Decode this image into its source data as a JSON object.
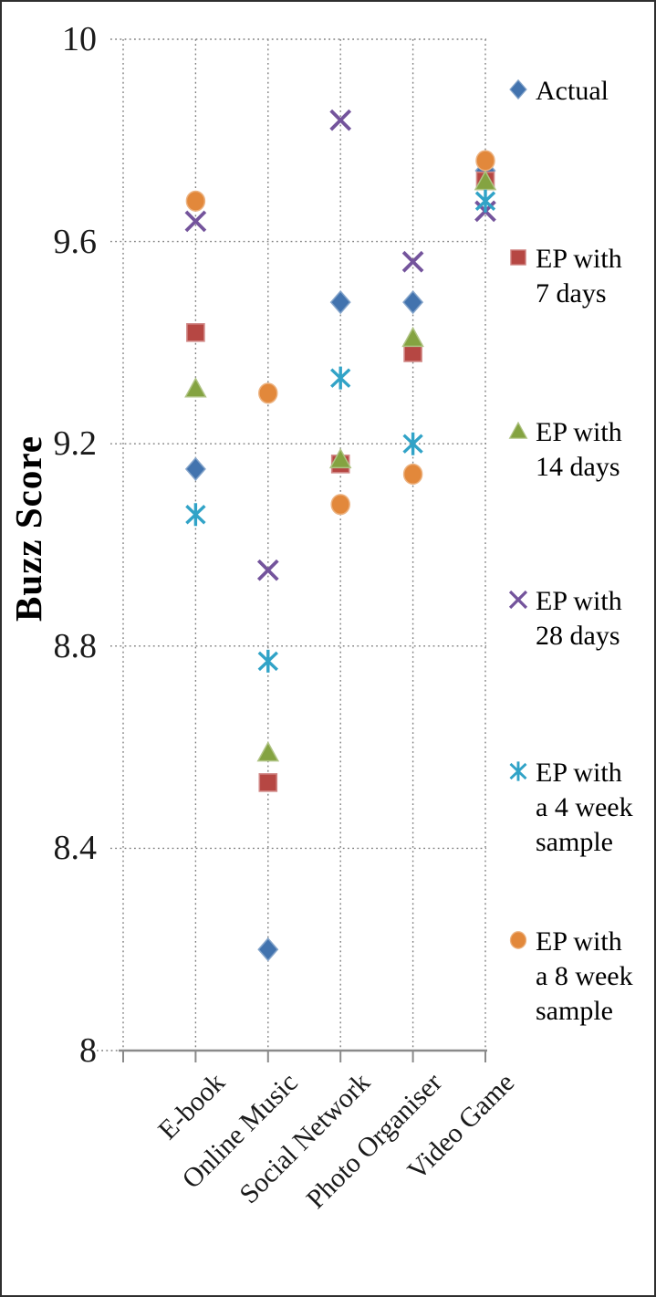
{
  "chart_data": {
    "type": "scatter",
    "title": "",
    "ylabel": "Buzz Score",
    "xlabel": "",
    "ylim": [
      8,
      10
    ],
    "y_ticks": [
      "10",
      "9.6",
      "9.2",
      "8.8",
      "8.4",
      "8"
    ],
    "grid": "dotted",
    "legend_position": "right",
    "categories": [
      "E-book",
      "Online Music",
      "Social Network",
      "Photo Organiser",
      "Video Game"
    ],
    "series": [
      {
        "name": "Actual",
        "label_lines": [
          "Actual"
        ],
        "marker": "diamond-icon",
        "color": "#4273AE",
        "values": [
          9.15,
          8.2,
          9.48,
          9.48,
          9.74
        ]
      },
      {
        "name": "EP with 7 days",
        "label_lines": [
          "EP with",
          "7 days"
        ],
        "marker": "square-icon",
        "color": "#B64743",
        "values": [
          9.42,
          8.53,
          9.16,
          9.38,
          9.72
        ]
      },
      {
        "name": "EP with 14 days",
        "label_lines": [
          "EP with",
          "14 days"
        ],
        "marker": "triangle-icon",
        "color": "#84A341",
        "values": [
          9.31,
          8.59,
          9.17,
          9.41,
          9.72
        ]
      },
      {
        "name": "EP with 28 days",
        "label_lines": [
          "EP with",
          "28 days"
        ],
        "marker": "x-icon",
        "color": "#74549C",
        "values": [
          9.64,
          8.95,
          9.84,
          9.56,
          9.66
        ]
      },
      {
        "name": "EP with a 4 week sample",
        "label_lines": [
          "EP with",
          "a 4 week",
          "sample"
        ],
        "marker": "asterisk-icon",
        "color": "#31A3C7",
        "values": [
          9.06,
          8.77,
          9.33,
          9.2,
          9.68
        ]
      },
      {
        "name": "EP with a 8 week sample",
        "label_lines": [
          "EP with",
          "a 8 week",
          "sample"
        ],
        "marker": "circle-icon",
        "color": "#E2883B",
        "values": [
          9.68,
          9.3,
          9.08,
          9.14,
          9.76
        ]
      }
    ],
    "axis_color": "#8a8a8a",
    "gridline_color": "#7f7f7f"
  }
}
